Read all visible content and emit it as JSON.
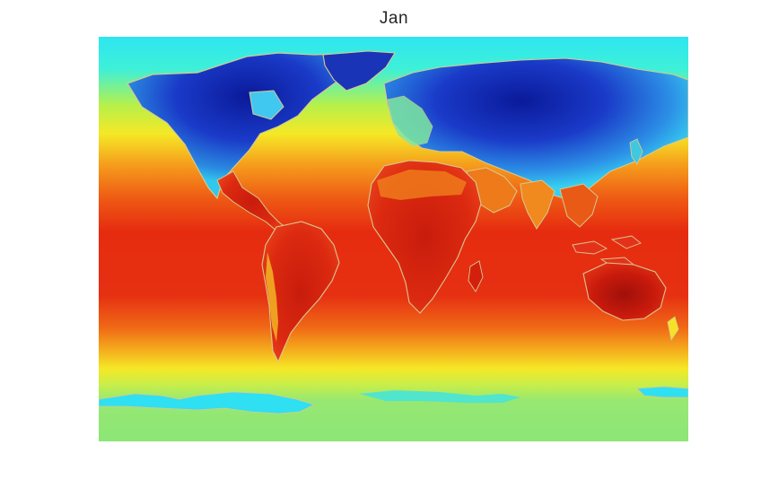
{
  "map": {
    "title": "Jan",
    "colormap": "jet",
    "colors": {
      "polar_cyan": "#2ee6f0",
      "ocean_red": "#e82c12",
      "deep_red": "#c41a0a",
      "subtropic_orange": "#f58a1a",
      "temperate_yellow": "#f5e826",
      "southern_green": "#8ce676",
      "cold_blue": "#2a5ad8",
      "coldest_navy": "#0a1a9a",
      "coast_outline": "#d8c890"
    }
  }
}
